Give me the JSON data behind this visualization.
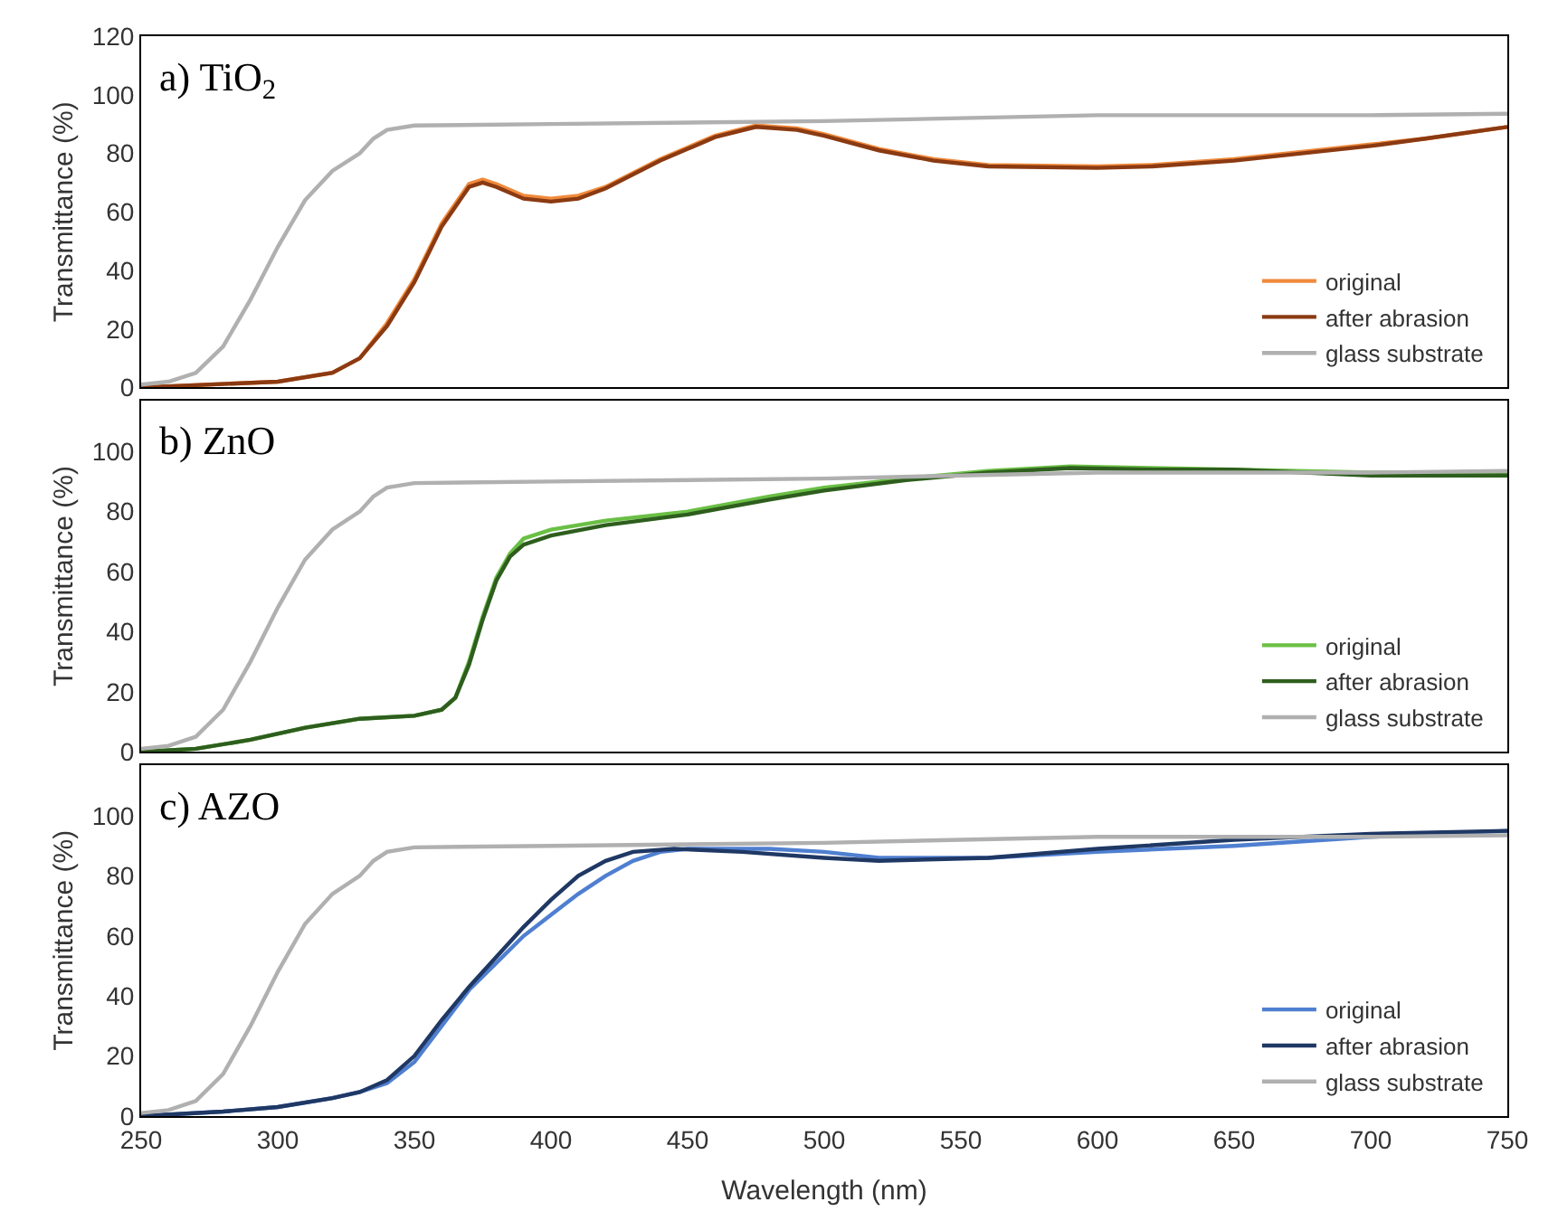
{
  "chart_data": [
    {
      "type": "line",
      "title": "a) TiO$_{2}$",
      "ylabel": "Transmittance (%)",
      "xlim": [
        250,
        750
      ],
      "xticks": [
        250,
        300,
        350,
        400,
        450,
        500,
        550,
        600,
        650,
        700,
        750
      ],
      "ylim": [
        0,
        120
      ],
      "yticks": [
        0,
        20,
        40,
        60,
        80,
        100,
        120
      ],
      "tick_labels": "y",
      "grid": false,
      "legend": "bottom right",
      "line_style": "solid",
      "marker": "none",
      "series": [
        {
          "name": "original",
          "color": "#f08a3c",
          "x": [
            250,
            300,
            320,
            330,
            340,
            350,
            360,
            370,
            375,
            380,
            390,
            400,
            410,
            420,
            440,
            460,
            475,
            490,
            500,
            520,
            540,
            560,
            600,
            620,
            650,
            680,
            700,
            720,
            750
          ],
          "values": [
            0,
            2,
            5,
            10,
            22,
            37,
            56,
            69.5,
            71,
            69.5,
            65.5,
            64.5,
            65.5,
            68.5,
            78,
            86,
            89.5,
            88.5,
            86.5,
            81.5,
            78,
            76,
            75.5,
            76,
            78,
            81,
            83,
            85,
            89
          ]
        },
        {
          "name": "after abrasion",
          "color": "#8b3a12",
          "x": [
            250,
            300,
            320,
            330,
            340,
            350,
            360,
            370,
            375,
            380,
            390,
            400,
            410,
            420,
            440,
            460,
            475,
            490,
            500,
            520,
            540,
            560,
            600,
            620,
            650,
            680,
            700,
            720,
            750
          ],
          "values": [
            0,
            2,
            5,
            10,
            21,
            36,
            55,
            68.5,
            70,
            68.5,
            64.5,
            63.5,
            64.5,
            68,
            77.5,
            85.5,
            89,
            88,
            86,
            81,
            77.5,
            75.5,
            75,
            75.5,
            77.5,
            80.5,
            82.5,
            85,
            89
          ]
        },
        {
          "name": "glass substrate",
          "color": "#b0b0b0",
          "x": [
            250,
            260,
            270,
            280,
            290,
            300,
            310,
            320,
            330,
            335,
            340,
            350,
            400,
            500,
            600,
            700,
            750
          ],
          "values": [
            1,
            2,
            5,
            14,
            30,
            48,
            64,
            74,
            80,
            85,
            88,
            89.5,
            90,
            91,
            93,
            93,
            93.5
          ]
        }
      ]
    },
    {
      "type": "line",
      "title": "b) ZnO",
      "ylabel": "Transmittance (%)",
      "xlim": [
        250,
        750
      ],
      "xticks": [
        250,
        300,
        350,
        400,
        450,
        500,
        550,
        600,
        650,
        700,
        750
      ],
      "ylim": [
        0,
        117
      ],
      "yticks": [
        0,
        20,
        40,
        60,
        80,
        100
      ],
      "tick_labels": "y",
      "grid": false,
      "legend": "bottom right",
      "line_style": "solid",
      "marker": "none",
      "series": [
        {
          "name": "original",
          "color": "#6abf45",
          "x": [
            250,
            270,
            290,
            310,
            330,
            350,
            360,
            365,
            370,
            375,
            380,
            385,
            390,
            400,
            420,
            450,
            480,
            500,
            530,
            560,
            590,
            620,
            650,
            700,
            750
          ],
          "values": [
            0,
            1,
            4,
            8,
            11,
            12,
            14,
            18,
            30,
            45,
            58,
            66,
            71,
            74,
            77,
            80,
            85,
            88,
            91,
            93.5,
            95,
            94.5,
            94,
            93,
            93
          ]
        },
        {
          "name": "after abrasion",
          "color": "#2e5e1e",
          "x": [
            250,
            270,
            290,
            310,
            330,
            350,
            360,
            365,
            370,
            375,
            380,
            385,
            390,
            400,
            420,
            450,
            480,
            500,
            530,
            560,
            590,
            620,
            650,
            700,
            750
          ],
          "values": [
            0,
            1,
            4,
            8,
            11,
            12,
            14,
            18,
            29,
            44,
            57,
            65,
            69,
            72,
            75.5,
            79,
            84,
            87,
            90.5,
            93,
            94.5,
            94,
            94,
            92,
            92
          ]
        },
        {
          "name": "glass substrate",
          "color": "#b0b0b0",
          "x": [
            250,
            260,
            270,
            280,
            290,
            300,
            310,
            320,
            330,
            335,
            340,
            350,
            400,
            500,
            600,
            700,
            750
          ],
          "values": [
            1,
            2,
            5,
            14,
            30,
            48,
            64,
            74,
            80,
            85,
            88,
            89.5,
            90,
            91,
            93,
            93,
            93.5
          ]
        }
      ]
    },
    {
      "type": "line",
      "title": "c) AZO",
      "xlabel": "Wavelength (nm)",
      "ylabel": "Transmittance (%)",
      "xlim": [
        250,
        750
      ],
      "xticks": [
        250,
        300,
        350,
        400,
        450,
        500,
        550,
        600,
        650,
        700,
        750
      ],
      "ylim": [
        0,
        117
      ],
      "yticks": [
        0,
        20,
        40,
        60,
        80,
        100
      ],
      "grid": false,
      "legend": "bottom right",
      "line_style": "solid",
      "marker": "none",
      "series": [
        {
          "name": "original",
          "color": "#4f7fd0",
          "x": [
            250,
            280,
            300,
            320,
            330,
            340,
            350,
            360,
            370,
            380,
            390,
            400,
            410,
            420,
            430,
            440,
            450,
            480,
            500,
            520,
            560,
            600,
            650,
            700,
            750
          ],
          "values": [
            0,
            1.5,
            3,
            6,
            8,
            11,
            18,
            30,
            42,
            51,
            60,
            67,
            74,
            80,
            85,
            88,
            89,
            89,
            88,
            86,
            86,
            88,
            90,
            93,
            95
          ]
        },
        {
          "name": "after abrasion",
          "color": "#1f3864",
          "x": [
            250,
            280,
            300,
            320,
            330,
            340,
            350,
            360,
            370,
            380,
            390,
            400,
            410,
            420,
            430,
            445,
            470,
            500,
            520,
            560,
            600,
            650,
            700,
            750
          ],
          "values": [
            0,
            1.5,
            3,
            6,
            8,
            12,
            20,
            32,
            43,
            53,
            63,
            72,
            80,
            85,
            88,
            89,
            88,
            86,
            85,
            86,
            89,
            92,
            94,
            95
          ]
        },
        {
          "name": "glass substrate",
          "color": "#b0b0b0",
          "x": [
            250,
            260,
            270,
            280,
            290,
            300,
            310,
            320,
            330,
            335,
            340,
            350,
            400,
            500,
            600,
            700,
            750
          ],
          "values": [
            1,
            2,
            5,
            14,
            30,
            48,
            64,
            74,
            80,
            85,
            88,
            89.5,
            90,
            91,
            93,
            93,
            93.5
          ]
        }
      ]
    }
  ]
}
